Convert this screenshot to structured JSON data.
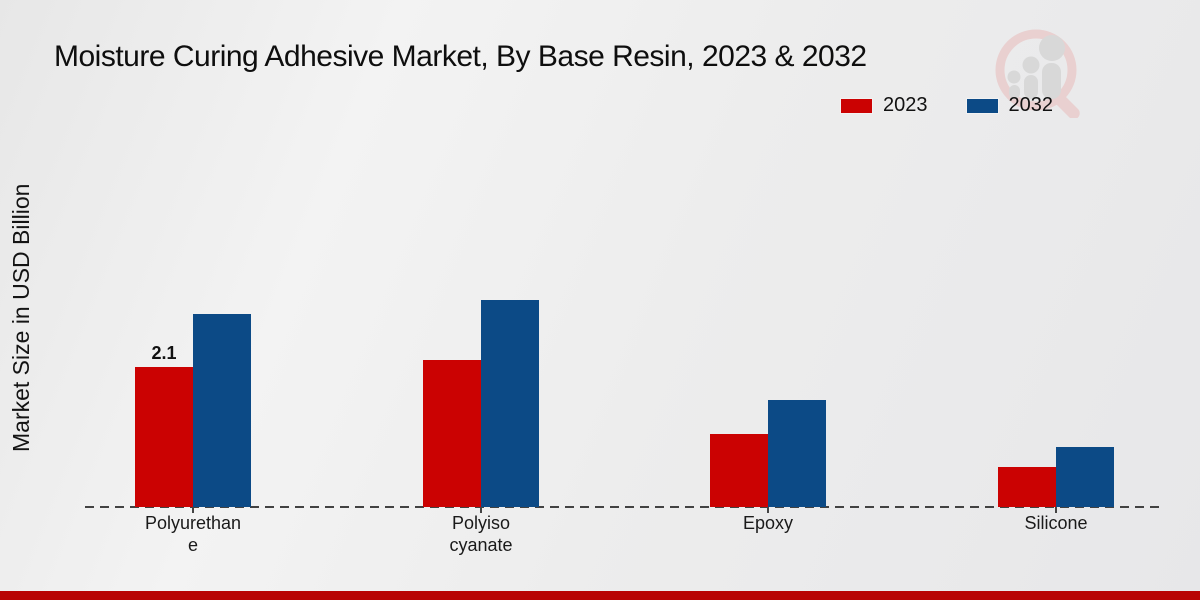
{
  "title": "Moisture Curing Adhesive Market, By Base Resin, 2023 & 2032",
  "y_axis_label": "Market Size in USD Billion",
  "watermark_icon": "magnifier-growth-chart-logo-icon",
  "colors": {
    "series_2023": "#cb0202",
    "series_2032": "#0c4a86",
    "footer_accent": "#b80404",
    "axis_line": "#424242",
    "watermark_ring": "#e9d0d0",
    "watermark_figure": "#d8d8d8"
  },
  "footer": {
    "accent_color": "#b80404"
  },
  "chart_data": {
    "type": "bar",
    "title": "Moisture Curing Adhesive Market, By Base Resin, 2023 & 2032",
    "ylabel": "Market Size in USD Billion",
    "xlabel": "",
    "categories": [
      "Polyurethane",
      "Polyisocyanate",
      "Epoxy",
      "Silicone"
    ],
    "category_display_lines": [
      [
        "Polyurethan",
        "e"
      ],
      [
        "Polyiso",
        "cyanate"
      ],
      [
        "Epoxy"
      ],
      [
        "Silicone"
      ]
    ],
    "series": [
      {
        "name": "2023",
        "color": "#cb0202",
        "values": [
          2.1,
          2.2,
          1.1,
          0.6
        ],
        "data_labels": [
          "2.1",
          "",
          "",
          ""
        ]
      },
      {
        "name": "2032",
        "color": "#0c4a86",
        "values": [
          2.9,
          3.1,
          1.6,
          0.9
        ],
        "data_labels": [
          "",
          "",
          "",
          ""
        ]
      }
    ],
    "ylim": [
      0,
      3.5
    ],
    "grid": false,
    "y_tick_labels": [],
    "legend_position": "top-right",
    "baseline_style": "dashed"
  }
}
